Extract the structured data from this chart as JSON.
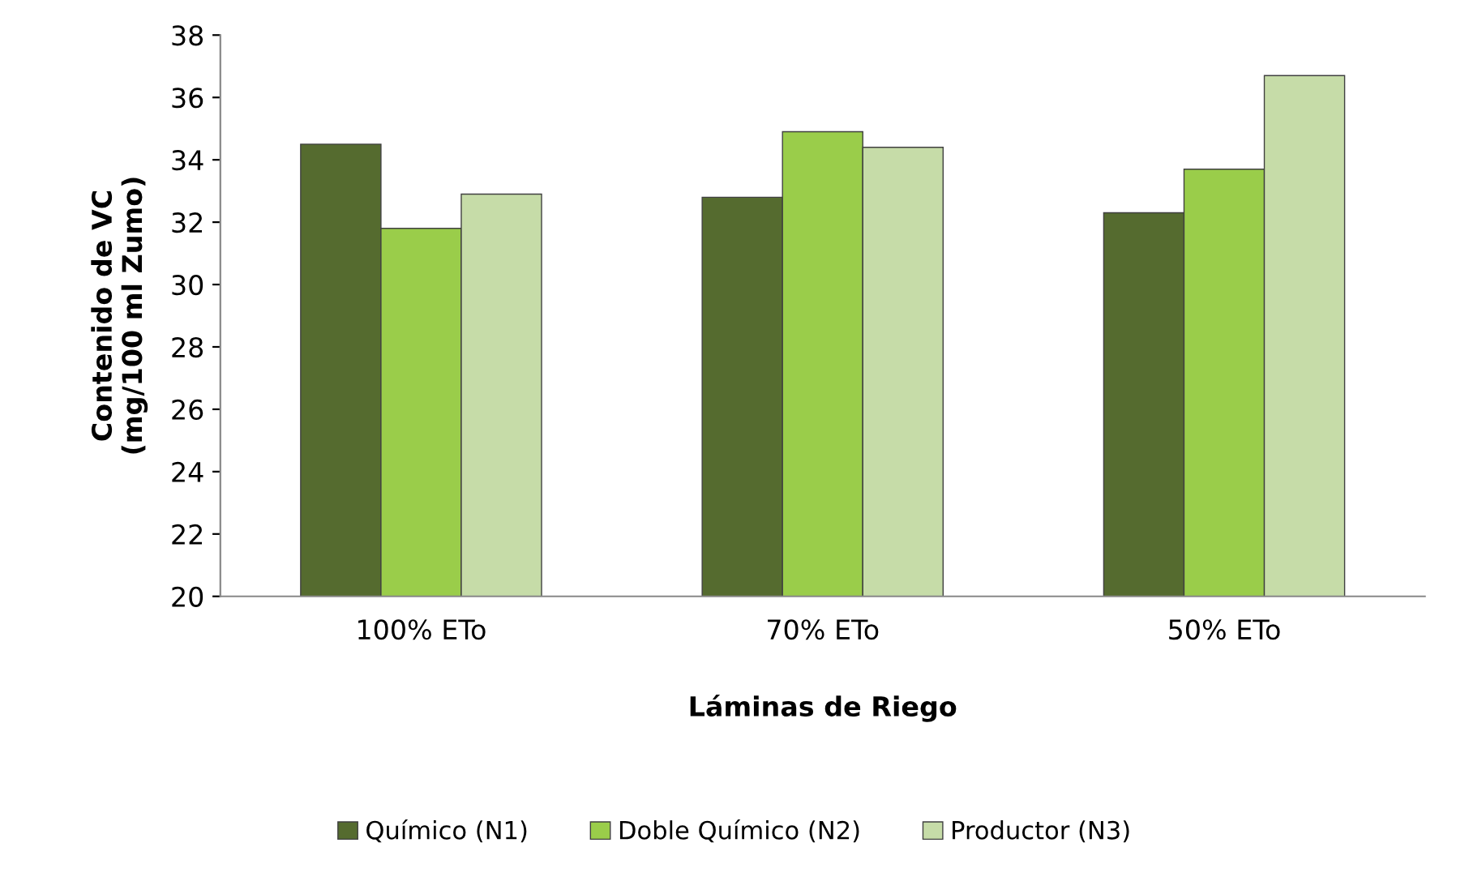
{
  "chart_data": {
    "type": "bar",
    "xlabel": "Láminas de Riego",
    "ylabel": "Contenido de VC\n(mg/100 ml Zumo)",
    "categories": [
      "100% ETo",
      "70% ETo",
      "50% ETo"
    ],
    "series": [
      {
        "name": "Químico (N1)",
        "color": "#556b2f",
        "values": [
          34.5,
          32.8,
          32.3
        ]
      },
      {
        "name": "Doble Químico (N2)",
        "color": "#9acd4a",
        "values": [
          31.8,
          34.9,
          33.7
        ]
      },
      {
        "name": "Productor (N3)",
        "color": "#c6dca8",
        "values": [
          32.9,
          34.4,
          36.7
        ]
      }
    ],
    "ylim": [
      20,
      38
    ],
    "yticks": [
      20,
      22,
      24,
      26,
      28,
      30,
      32,
      34,
      36,
      38
    ],
    "grid": false,
    "legend": "bottom"
  }
}
